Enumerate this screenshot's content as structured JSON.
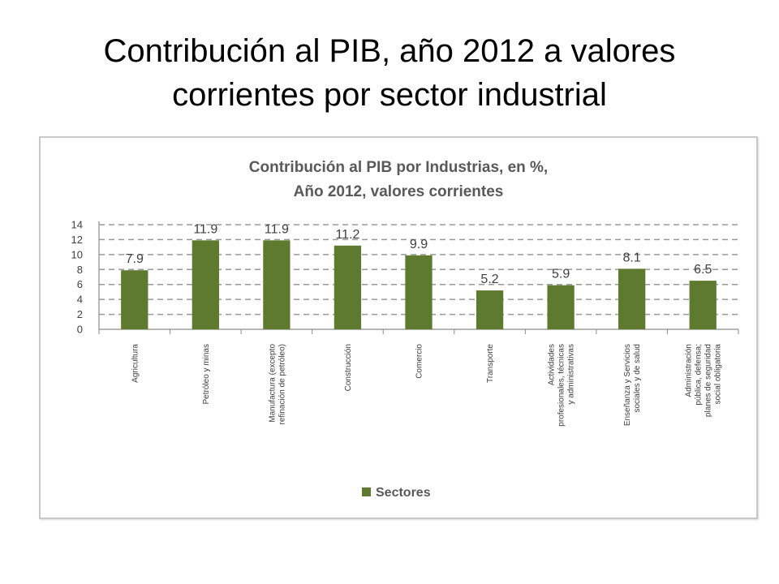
{
  "slide": {
    "title": "Contribución al PIB, año 2012 a valores corrientes por sector industrial"
  },
  "chart_data": {
    "type": "bar",
    "title_lines": [
      "Contribución al PIB por Industrias, en %,",
      "Año 2012, valores corrientes"
    ],
    "categories": [
      [
        "Agricultura"
      ],
      [
        "Petróleo y minas"
      ],
      [
        "Manufactura (excepto",
        "refinación de petróleo)"
      ],
      [
        "Construcción"
      ],
      [
        "Comercio"
      ],
      [
        "Transporte"
      ],
      [
        "Actividades",
        "profesionales, técnicas",
        "y administrativas"
      ],
      [
        "Enseñanza y Servicios",
        "sociales y de salud"
      ],
      [
        "Administración",
        "pública, defensa;",
        "planes de seguridad",
        "social obligatoria"
      ]
    ],
    "series": [
      {
        "name": "Sectores",
        "values": [
          7.9,
          11.9,
          11.9,
          11.2,
          9.9,
          5.2,
          5.9,
          8.1,
          6.5
        ],
        "color": "#5e7a2f"
      }
    ],
    "ylim": [
      0,
      14
    ],
    "yticks": [
      0,
      2,
      4,
      6,
      8,
      10,
      12,
      14
    ],
    "grid": true,
    "grid_style": "dashed",
    "legend_position": "bottom"
  }
}
